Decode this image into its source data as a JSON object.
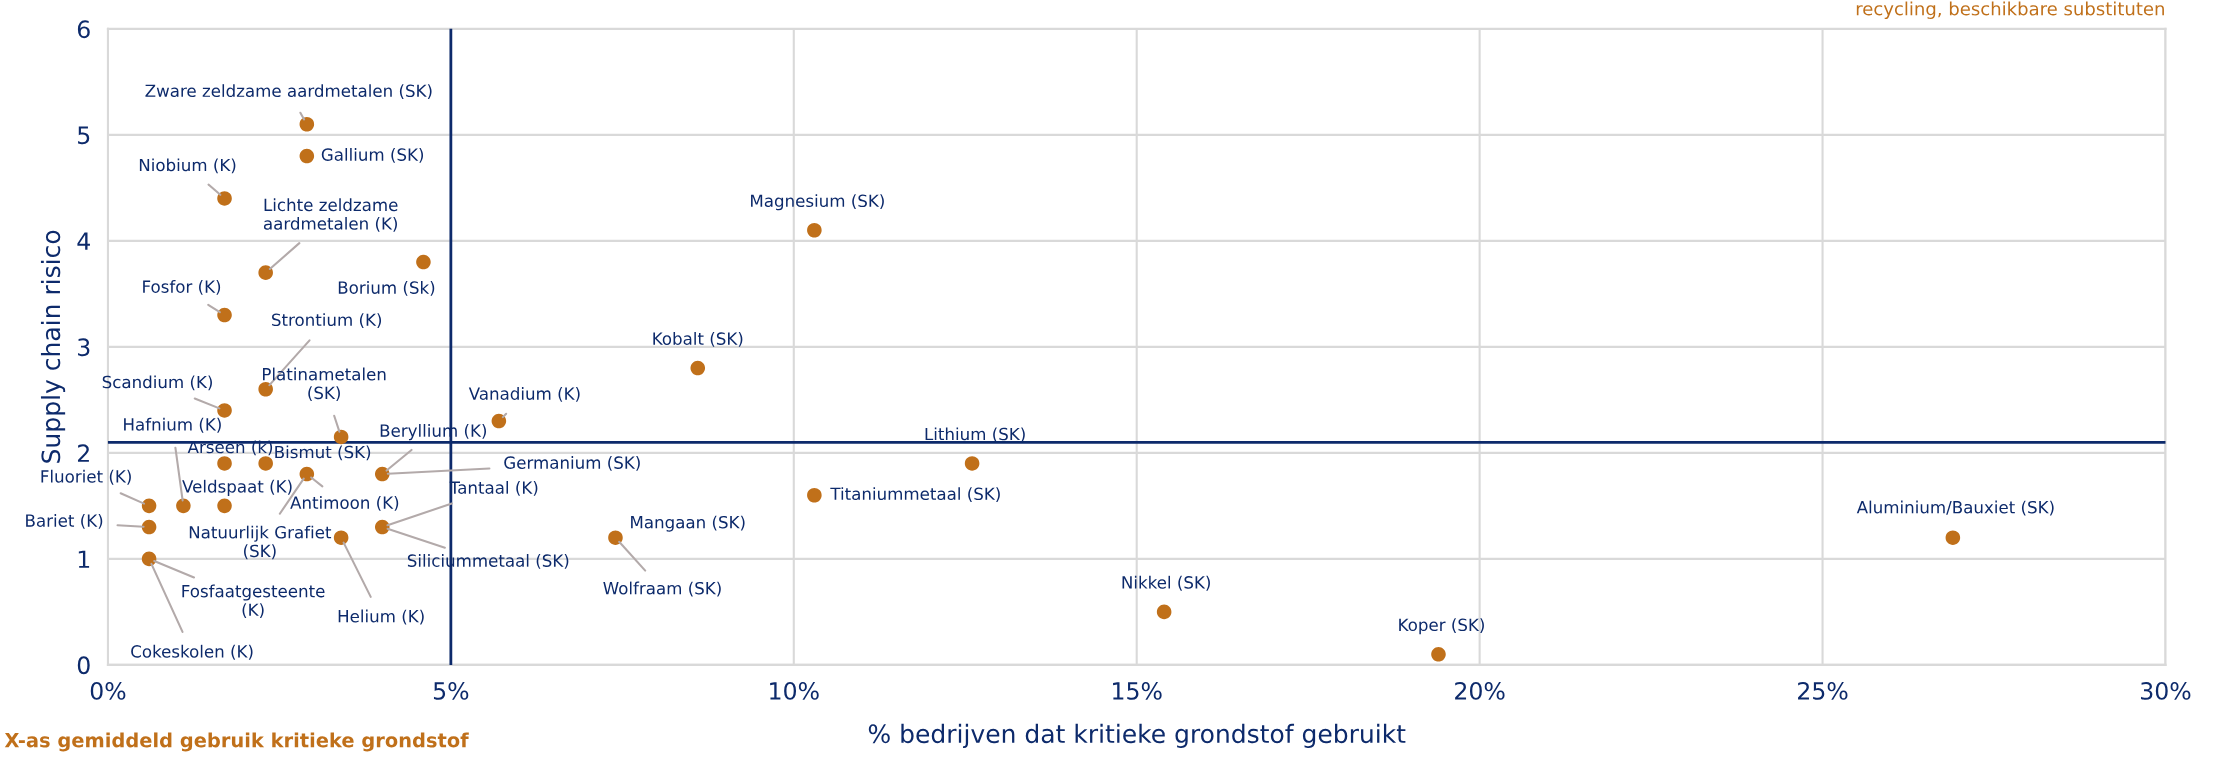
{
  "chart_data": {
    "type": "scatter",
    "xlabel": "% bedrijven dat kritieke grondstof gebruikt",
    "ylabel": "Supply chain risico",
    "x": [
      2.9,
      2.9,
      1.7,
      2.3,
      4.6,
      1.7,
      2.3,
      1.7,
      3.4,
      5.7,
      1.7,
      2.3,
      2.9,
      4.0,
      0.6,
      1.1,
      1.7,
      0.6,
      4.0,
      3.4,
      0.6,
      7.4,
      8.6,
      10.3,
      12.6,
      10.3,
      15.4,
      19.4,
      26.9
    ],
    "series": [
      {
        "color": "#c0701a",
        "values": [
          5.1,
          4.8,
          4.4,
          3.7,
          3.8,
          3.3,
          2.6,
          2.4,
          2.15,
          2.3,
          1.9,
          1.9,
          1.8,
          1.8,
          1.5,
          1.5,
          1.5,
          1.3,
          1.3,
          1.2,
          1.0,
          1.2,
          2.8,
          4.1,
          1.9,
          1.6,
          0.5,
          0.1,
          1.2
        ]
      }
    ],
    "xlim": [
      0,
      30
    ],
    "xticks": [
      {
        "value": 0,
        "label": "0%"
      },
      {
        "value": 5,
        "label": "5%"
      },
      {
        "value": 10,
        "label": "10%"
      },
      {
        "value": 15,
        "label": "15%"
      },
      {
        "value": 20,
        "label": "20%"
      },
      {
        "value": 25,
        "label": "25%"
      },
      {
        "value": 30,
        "label": "30%"
      }
    ],
    "ylim": [
      0,
      6
    ],
    "yticks": [
      0,
      1,
      2,
      3,
      4,
      5,
      6
    ],
    "grid": true,
    "marker": "circle",
    "ref_lines": [
      {
        "axis": "x",
        "value": 5,
        "color": "#0d2a6b"
      },
      {
        "axis": "y",
        "value": 2.1,
        "color": "#0d2a6b"
      }
    ],
    "annotations": [
      {
        "text": "Zware zeldzame aardmetalen (SK)",
        "x": 2.9,
        "y": 5.1
      },
      {
        "text": "Gallium (SK)",
        "x": 2.9,
        "y": 4.8
      },
      {
        "text": "Niobium (K)",
        "x": 1.7,
        "y": 4.4
      },
      {
        "text": "Lichte zeldzame\naardmetalen (K)",
        "x": 2.3,
        "y": 3.7
      },
      {
        "text": "Borium (Sk)",
        "x": 4.6,
        "y": 3.8
      },
      {
        "text": "Fosfor (K)",
        "x": 1.7,
        "y": 3.3
      },
      {
        "text": "Strontium (K)",
        "x": 2.3,
        "y": 2.6
      },
      {
        "text": "Scandium (K)",
        "x": 1.7,
        "y": 2.4
      },
      {
        "text": "Platinametalen\n(SK)",
        "x": 3.4,
        "y": 2.15
      },
      {
        "text": "Vanadium (K)",
        "x": 5.7,
        "y": 2.3
      },
      {
        "text": "Hafnium (K)",
        "x": 1.1,
        "y": 1.5
      },
      {
        "text": "Arseen (k)",
        "x": 1.7,
        "y": 1.9
      },
      {
        "text": "Bismut (SK)",
        "x": 2.3,
        "y": 1.9
      },
      {
        "text": "Fluoriet (K)",
        "x": 0.6,
        "y": 1.5
      },
      {
        "text": "Veldspaat (K)",
        "x": 1.7,
        "y": 1.5
      },
      {
        "text": "Antimoon (K)",
        "x": 2.9,
        "y": 1.8
      },
      {
        "text": "Beryllium (K)",
        "x": 4.0,
        "y": 1.8
      },
      {
        "text": "Germanium (SK)",
        "x": 4.0,
        "y": 1.8
      },
      {
        "text": "Tantaal (K)",
        "x": 4.0,
        "y": 1.3
      },
      {
        "text": "Bariet (K)",
        "x": 0.6,
        "y": 1.3
      },
      {
        "text": "Natuurlijk Grafiet\n(SK)",
        "x": 2.9,
        "y": 1.8
      },
      {
        "text": "Siliciummetaal (SK)",
        "x": 4.0,
        "y": 1.3
      },
      {
        "text": "Helium (K)",
        "x": 3.4,
        "y": 1.2
      },
      {
        "text": "Fosfaatgesteente\n(K)",
        "x": 0.6,
        "y": 1.0
      },
      {
        "text": "Cokeskolen (K)",
        "x": 0.6,
        "y": 1.0
      },
      {
        "text": "Mangaan (SK)",
        "x": 7.4,
        "y": 1.2
      },
      {
        "text": "Wolfraam (SK)",
        "x": 7.4,
        "y": 1.2
      },
      {
        "text": "Kobalt (SK)",
        "x": 8.6,
        "y": 2.8
      },
      {
        "text": "Magnesium (SK)",
        "x": 10.3,
        "y": 4.1
      },
      {
        "text": "Lithium (SK)",
        "x": 12.6,
        "y": 1.9
      },
      {
        "text": "Titaniummetaal (SK)",
        "x": 10.3,
        "y": 1.6
      },
      {
        "text": "Nikkel (SK)",
        "x": 15.4,
        "y": 0.5
      },
      {
        "text": "Koper (SK)",
        "x": 19.4,
        "y": 0.1
      },
      {
        "text": "Aluminium/Bauxiet (SK)",
        "x": 26.9,
        "y": 1.2
      },
      "recycling, beschikbare substituten",
      "X-as gemiddeld gebruik kritieke grondstof"
    ]
  }
}
